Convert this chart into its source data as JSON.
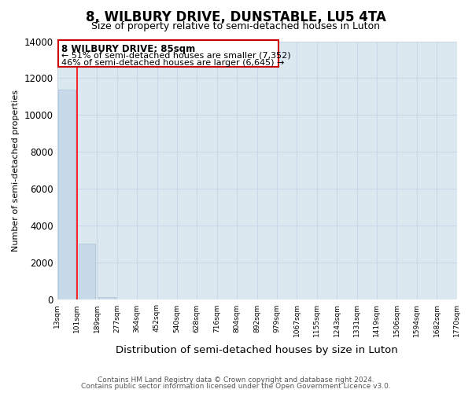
{
  "title": "8, WILBURY DRIVE, DUNSTABLE, LU5 4TA",
  "subtitle": "Size of property relative to semi-detached houses in Luton",
  "xlabel": "Distribution of semi-detached houses by size in Luton",
  "ylabel": "Number of semi-detached properties",
  "footnote1": "Contains HM Land Registry data © Crown copyright and database right 2024.",
  "footnote2": "Contains public sector information licensed under the Open Government Licence v3.0.",
  "annotation_title": "8 WILBURY DRIVE: 85sqm",
  "annotation_line1": "← 51% of semi-detached houses are smaller (7,352)",
  "annotation_line2": "46% of semi-detached houses are larger (6,645) →",
  "bar_values": [
    11400,
    3050,
    130,
    20,
    5,
    2,
    1,
    0,
    0,
    0,
    0,
    0,
    0,
    0,
    0,
    0,
    0,
    0,
    0,
    0
  ],
  "bar_labels": [
    "13sqm",
    "101sqm",
    "189sqm",
    "277sqm",
    "364sqm",
    "452sqm",
    "540sqm",
    "628sqm",
    "716sqm",
    "804sqm",
    "892sqm",
    "979sqm",
    "1067sqm",
    "1155sqm",
    "1243sqm",
    "1331sqm",
    "1419sqm",
    "1506sqm",
    "1594sqm",
    "1682sqm",
    "1770sqm"
  ],
  "bar_color": "#c8daea",
  "bar_edge_color": "#adc4d8",
  "red_line_x": 0.5,
  "ylim": [
    0,
    14000
  ],
  "yticks": [
    0,
    2000,
    4000,
    6000,
    8000,
    10000,
    12000,
    14000
  ],
  "title_fontsize": 12,
  "subtitle_fontsize": 9,
  "annotation_box_color": "#cc0000",
  "grid_color": "#c8d8e8",
  "plot_bg_color": "#dce8f0",
  "figure_bg_color": "#ffffff"
}
